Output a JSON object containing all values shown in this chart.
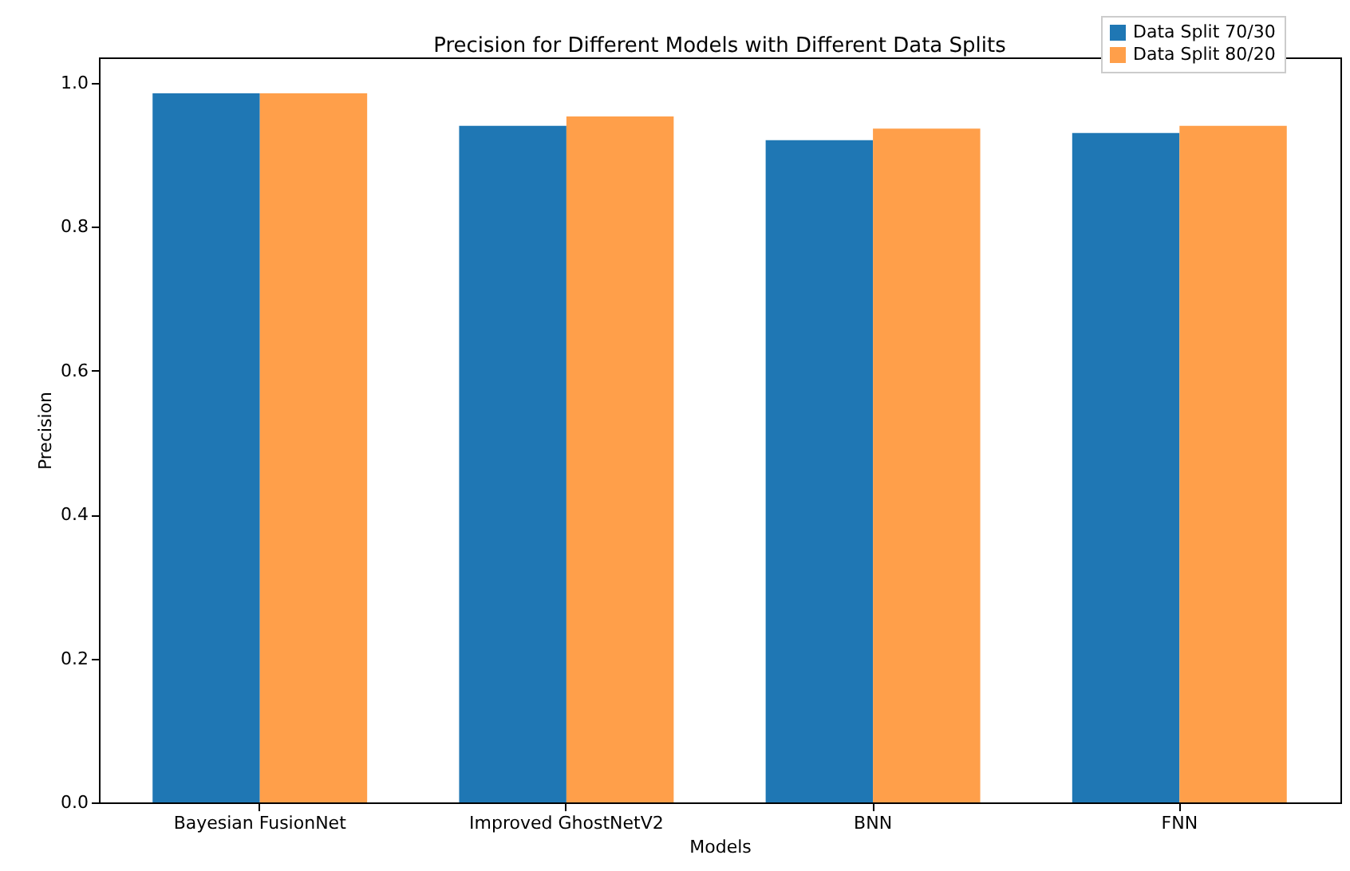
{
  "chart_data": {
    "type": "bar",
    "title": "Precision for Different Models with Different Data Splits",
    "xlabel": "Models",
    "ylabel": "Precision",
    "categories": [
      "Bayesian FusionNet",
      "Improved GhostNetV2",
      "BNN",
      "FNN"
    ],
    "series": [
      {
        "name": "Data Split 70/30",
        "color": "#1f77b4",
        "values": [
          0.985,
          0.94,
          0.92,
          0.93
        ]
      },
      {
        "name": "Data Split 80/20",
        "color": "#ff9f4a",
        "values": [
          0.985,
          0.953,
          0.936,
          0.94
        ]
      }
    ],
    "ylim": [
      0,
      1.035
    ],
    "yticks": [
      {
        "value": 0,
        "label": "0.0"
      },
      0.2,
      0.4,
      0.6,
      0.8,
      {
        "value": 1,
        "label": "1.0"
      }
    ],
    "legend": "top right",
    "grid": false
  }
}
